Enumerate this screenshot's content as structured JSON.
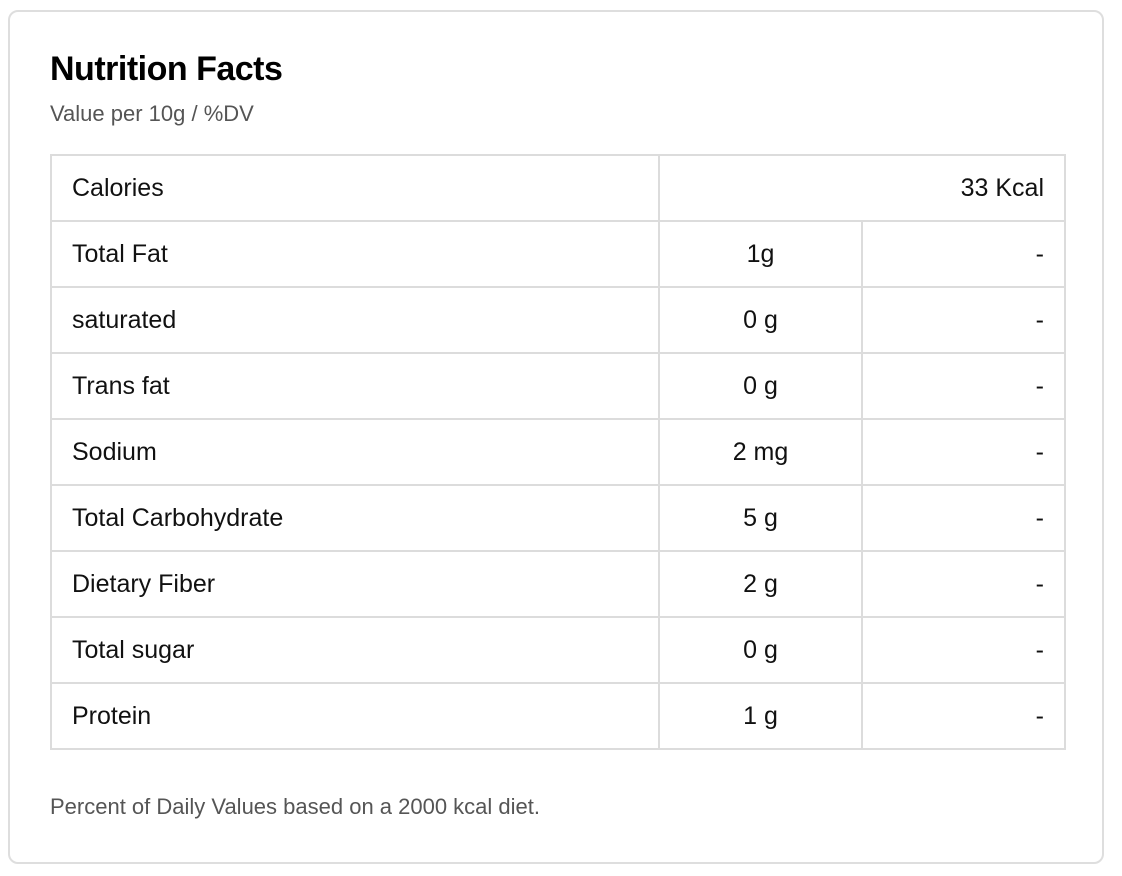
{
  "header": {
    "title": "Nutrition Facts",
    "subtitle": "Value per 10g / %DV"
  },
  "calories": {
    "label": "Calories",
    "value": "33 Kcal"
  },
  "nutrients": [
    {
      "label": "Total Fat",
      "amount": "1g",
      "dv": "-"
    },
    {
      "label": "saturated",
      "amount": "0 g",
      "dv": "-"
    },
    {
      "label": "Trans fat",
      "amount": "0 g",
      "dv": "-"
    },
    {
      "label": "Sodium",
      "amount": "2 mg",
      "dv": "-"
    },
    {
      "label": "Total Carbohydrate",
      "amount": "5 g",
      "dv": "-"
    },
    {
      "label": "Dietary Fiber",
      "amount": "2 g",
      "dv": "-"
    },
    {
      "label": "Total sugar",
      "amount": "0 g",
      "dv": "-"
    },
    {
      "label": "Protein",
      "amount": "1 g",
      "dv": "-"
    }
  ],
  "footnote": "Percent of Daily Values based on a 2000 kcal diet."
}
